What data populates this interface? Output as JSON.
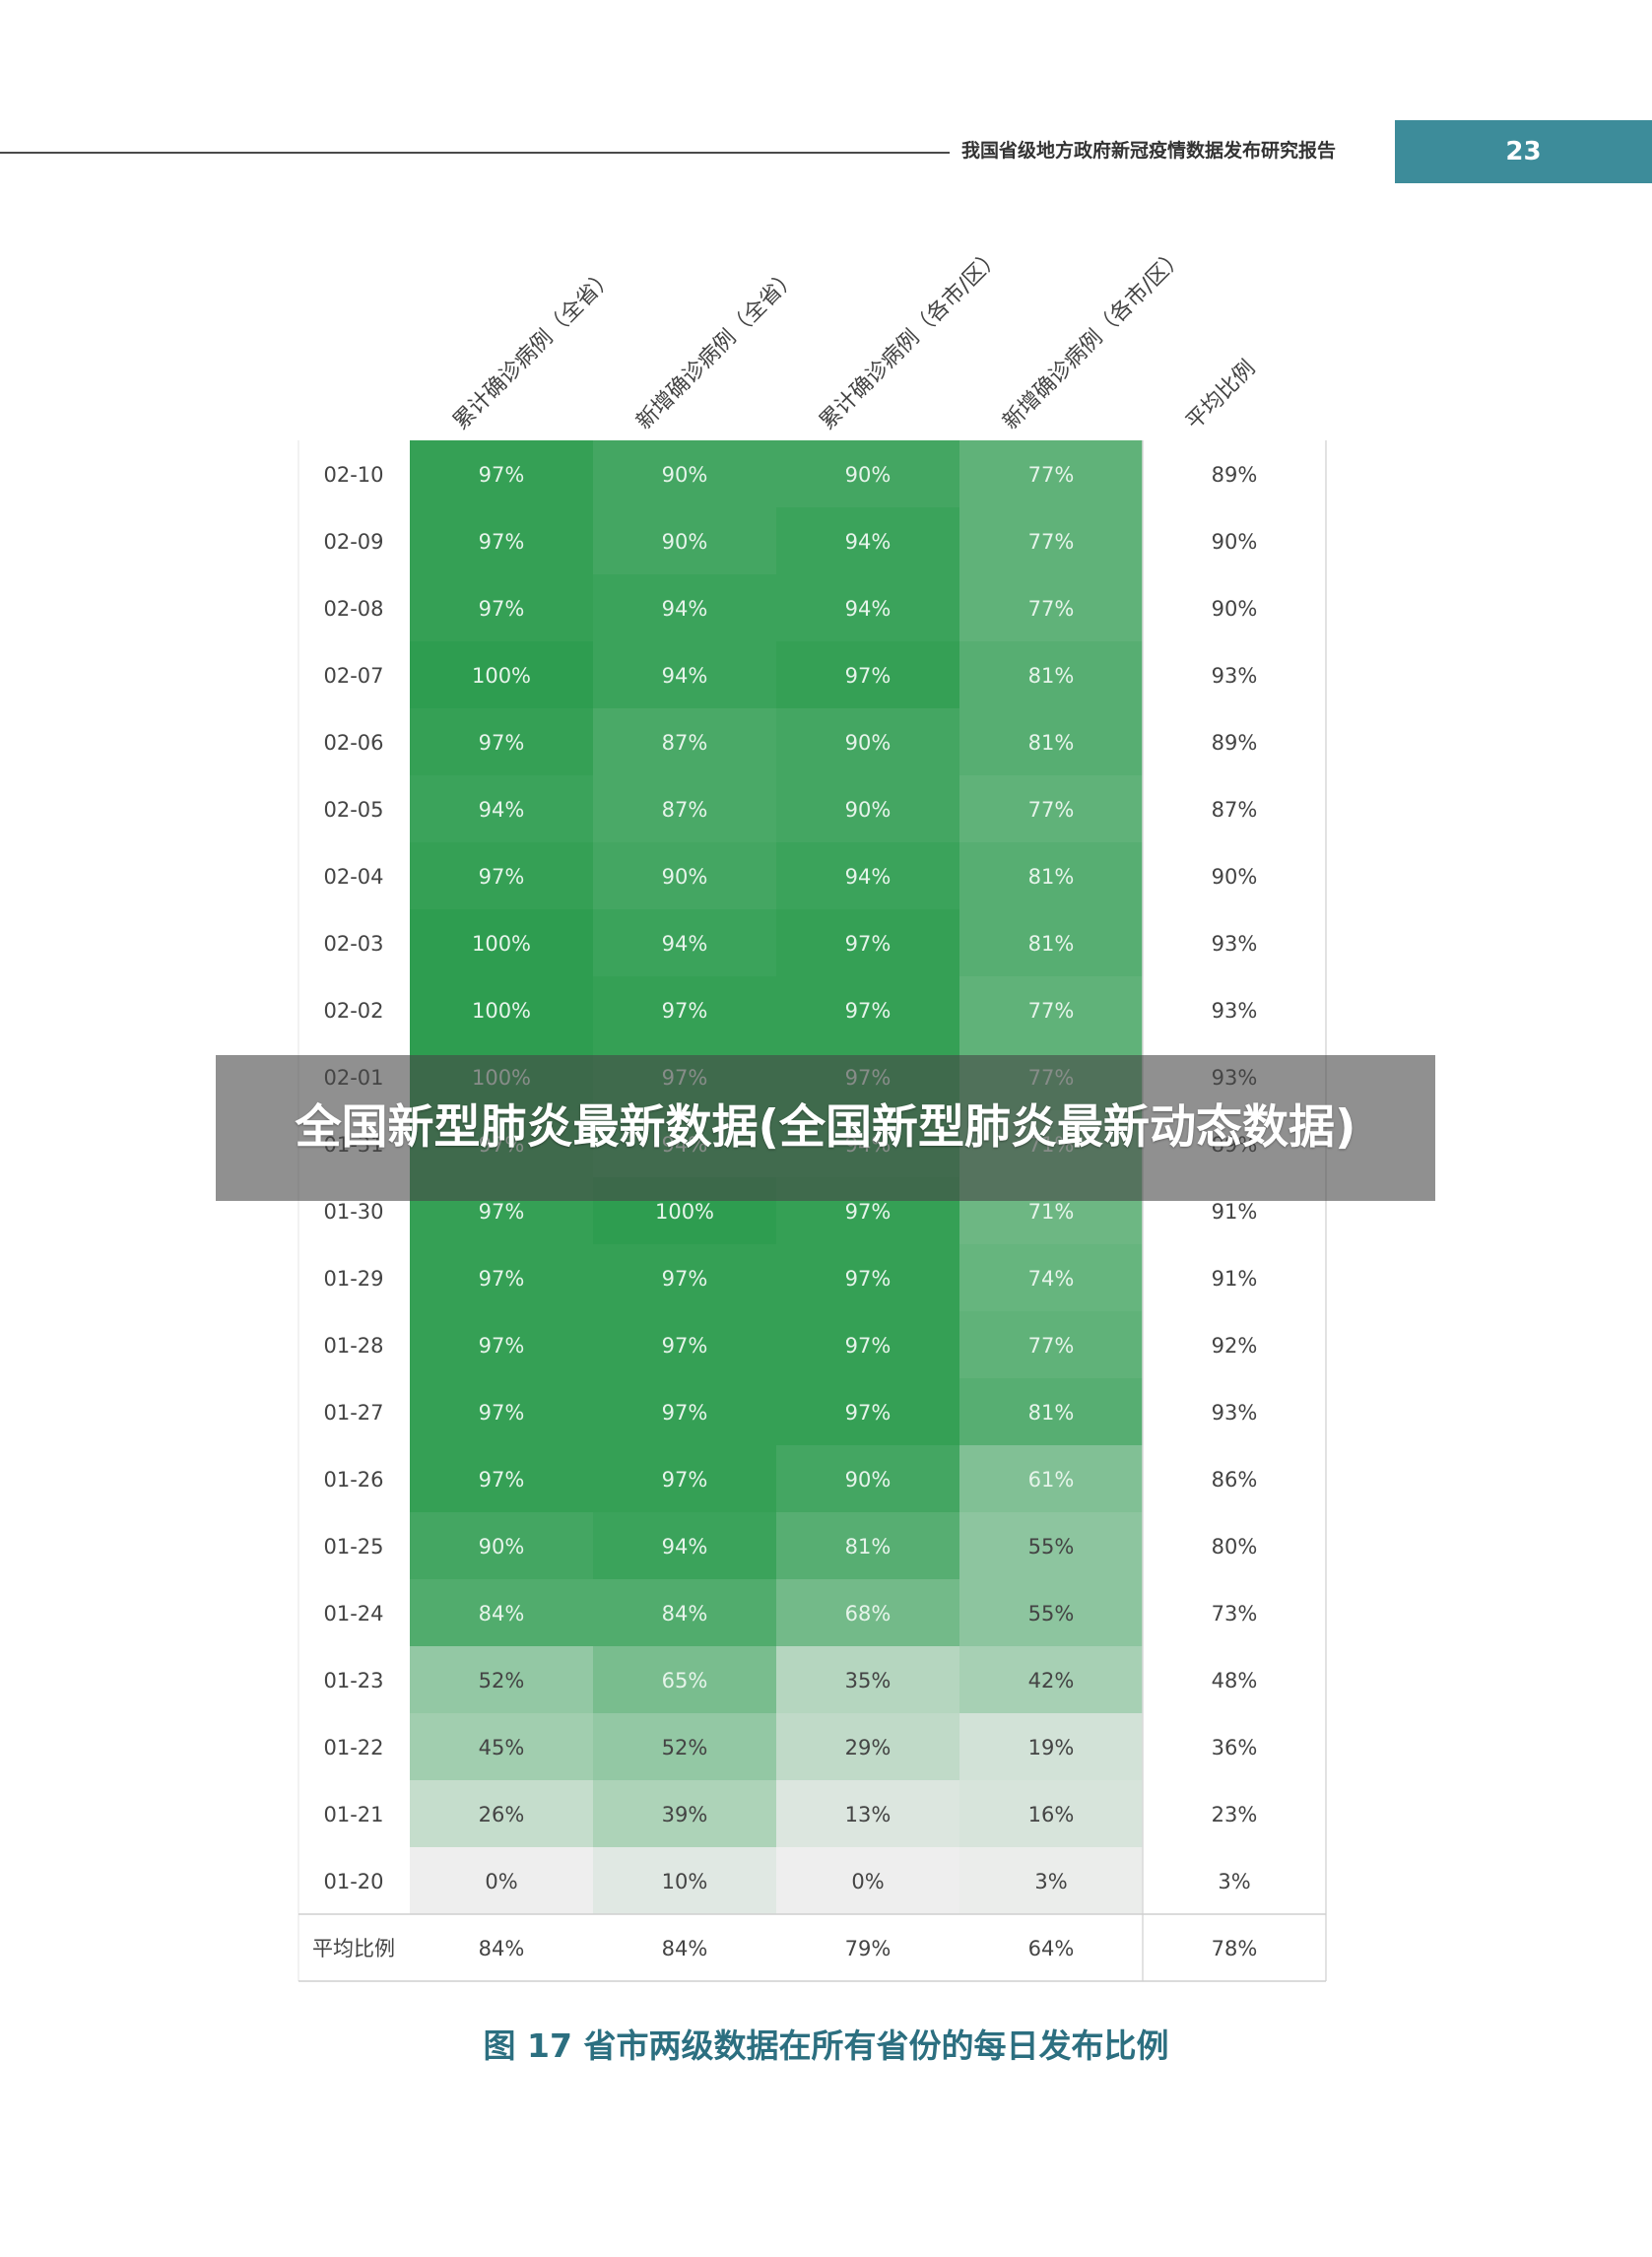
{
  "header": {
    "title": "我国省级地方政府新冠疫情数据发布研究报告",
    "page_number": "23"
  },
  "overlay": {
    "text": "全国新型肺炎最新数据(全国新型肺炎最新动态数据)"
  },
  "caption": "图 17 省市两级数据在所有省份的每日发布比例",
  "colors": {
    "accent": "#3d8c9a",
    "caption": "#2c6f80",
    "heat_high": "#2e9d50",
    "heat_low": "#eeeeee"
  },
  "chart_data": {
    "type": "heatmap",
    "columns": [
      "累计确诊病例（全省）",
      "新增确诊病例（全省）",
      "累计确诊病例（各市/区）",
      "新增确诊病例（各市/区）",
      "平均比例"
    ],
    "rows": [
      "02-10",
      "02-09",
      "02-08",
      "02-07",
      "02-06",
      "02-05",
      "02-04",
      "02-03",
      "02-02",
      "02-01",
      "01-31",
      "01-30",
      "01-29",
      "01-28",
      "01-27",
      "01-26",
      "01-25",
      "01-24",
      "01-23",
      "01-22",
      "01-21",
      "01-20"
    ],
    "values": [
      [
        97,
        90,
        90,
        77,
        89
      ],
      [
        97,
        90,
        94,
        77,
        90
      ],
      [
        97,
        94,
        94,
        77,
        90
      ],
      [
        100,
        94,
        97,
        81,
        93
      ],
      [
        97,
        87,
        90,
        81,
        89
      ],
      [
        94,
        87,
        90,
        77,
        87
      ],
      [
        97,
        90,
        94,
        81,
        90
      ],
      [
        100,
        94,
        97,
        81,
        93
      ],
      [
        100,
        97,
        97,
        77,
        93
      ],
      [
        100,
        97,
        97,
        77,
        93
      ],
      [
        97,
        94,
        94,
        71,
        89
      ],
      [
        97,
        100,
        97,
        71,
        91
      ],
      [
        97,
        97,
        97,
        74,
        91
      ],
      [
        97,
        97,
        97,
        77,
        92
      ],
      [
        97,
        97,
        97,
        81,
        93
      ],
      [
        97,
        97,
        90,
        61,
        86
      ],
      [
        90,
        94,
        81,
        55,
        80
      ],
      [
        84,
        84,
        68,
        55,
        73
      ],
      [
        52,
        65,
        35,
        42,
        48
      ],
      [
        45,
        52,
        29,
        19,
        36
      ],
      [
        26,
        39,
        13,
        16,
        23
      ],
      [
        0,
        10,
        0,
        3,
        3
      ]
    ],
    "average_row": {
      "label": "平均比例",
      "values": [
        84,
        84,
        79,
        64,
        78
      ]
    },
    "value_suffix": "%",
    "colored_columns": 4
  }
}
